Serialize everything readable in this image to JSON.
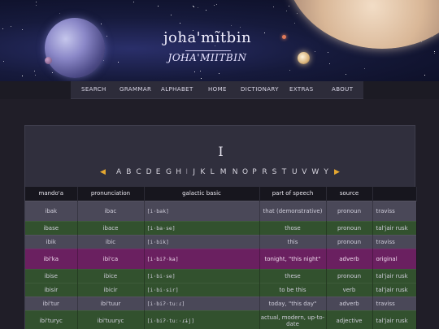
{
  "site": {
    "title": "joha'mĩtbin",
    "subtitle": "JOHA'MIITBIN"
  },
  "nav": [
    "SEARCH",
    "GRAMMAR",
    "ALPHABET",
    "HOME",
    "DICTIONARY",
    "EXTRAS",
    "ABOUT"
  ],
  "page": {
    "letter": "I",
    "prev_arrow": "◀",
    "next_arrow": "▶",
    "alphabet": [
      "A",
      "B",
      "C",
      "D",
      "E",
      "G",
      "H",
      "I",
      "J",
      "K",
      "L",
      "M",
      "N",
      "O",
      "P",
      "R",
      "S",
      "T",
      "U",
      "V",
      "W",
      "Y"
    ],
    "current_letter": "I"
  },
  "table": {
    "headers": [
      "mando'a",
      "pronunciation",
      "galactic basic",
      "part of speech",
      "source",
      ""
    ],
    "rows": [
      {
        "style": "grey",
        "cells": [
          "ibak",
          "ibac",
          "[i·bak]",
          "that (demonstrative)",
          "pronoun",
          "traviss"
        ]
      },
      {
        "style": "green",
        "cells": [
          "ibase",
          "ibace",
          "[i·ba·se]",
          "those",
          "pronoun",
          "tal'jair rusk"
        ]
      },
      {
        "style": "grey",
        "cells": [
          "ibik",
          "ibic",
          "[i·bik]",
          "this",
          "pronoun",
          "traviss"
        ]
      },
      {
        "style": "magenta",
        "cells": [
          "ibi'ka",
          "ibi'ca",
          "[i·biʔ·ka]",
          "tonight, \"this night\"",
          "adverb",
          "original"
        ]
      },
      {
        "style": "green",
        "cells": [
          "ibise",
          "ibice",
          "[i·bi·se]",
          "these",
          "pronoun",
          "tal'jair rusk"
        ]
      },
      {
        "style": "green",
        "cells": [
          "ibisir",
          "ibicir",
          "[i·bi·sir]",
          "to be this",
          "verb",
          "tal'jair rusk"
        ]
      },
      {
        "style": "grey",
        "cells": [
          "ibi'tur",
          "ibi'tuur",
          "[i·biʔ·tuːɾ]",
          "today, \"this day\"",
          "adverb",
          "traviss"
        ]
      },
      {
        "style": "green",
        "cells": [
          "ibi'turyc",
          "ibi'tuuryc",
          "[i·biʔ·tuː·ɾɨj]",
          "actual, modern, up-to-date",
          "adjective",
          "tal'jair rusk"
        ]
      }
    ]
  }
}
